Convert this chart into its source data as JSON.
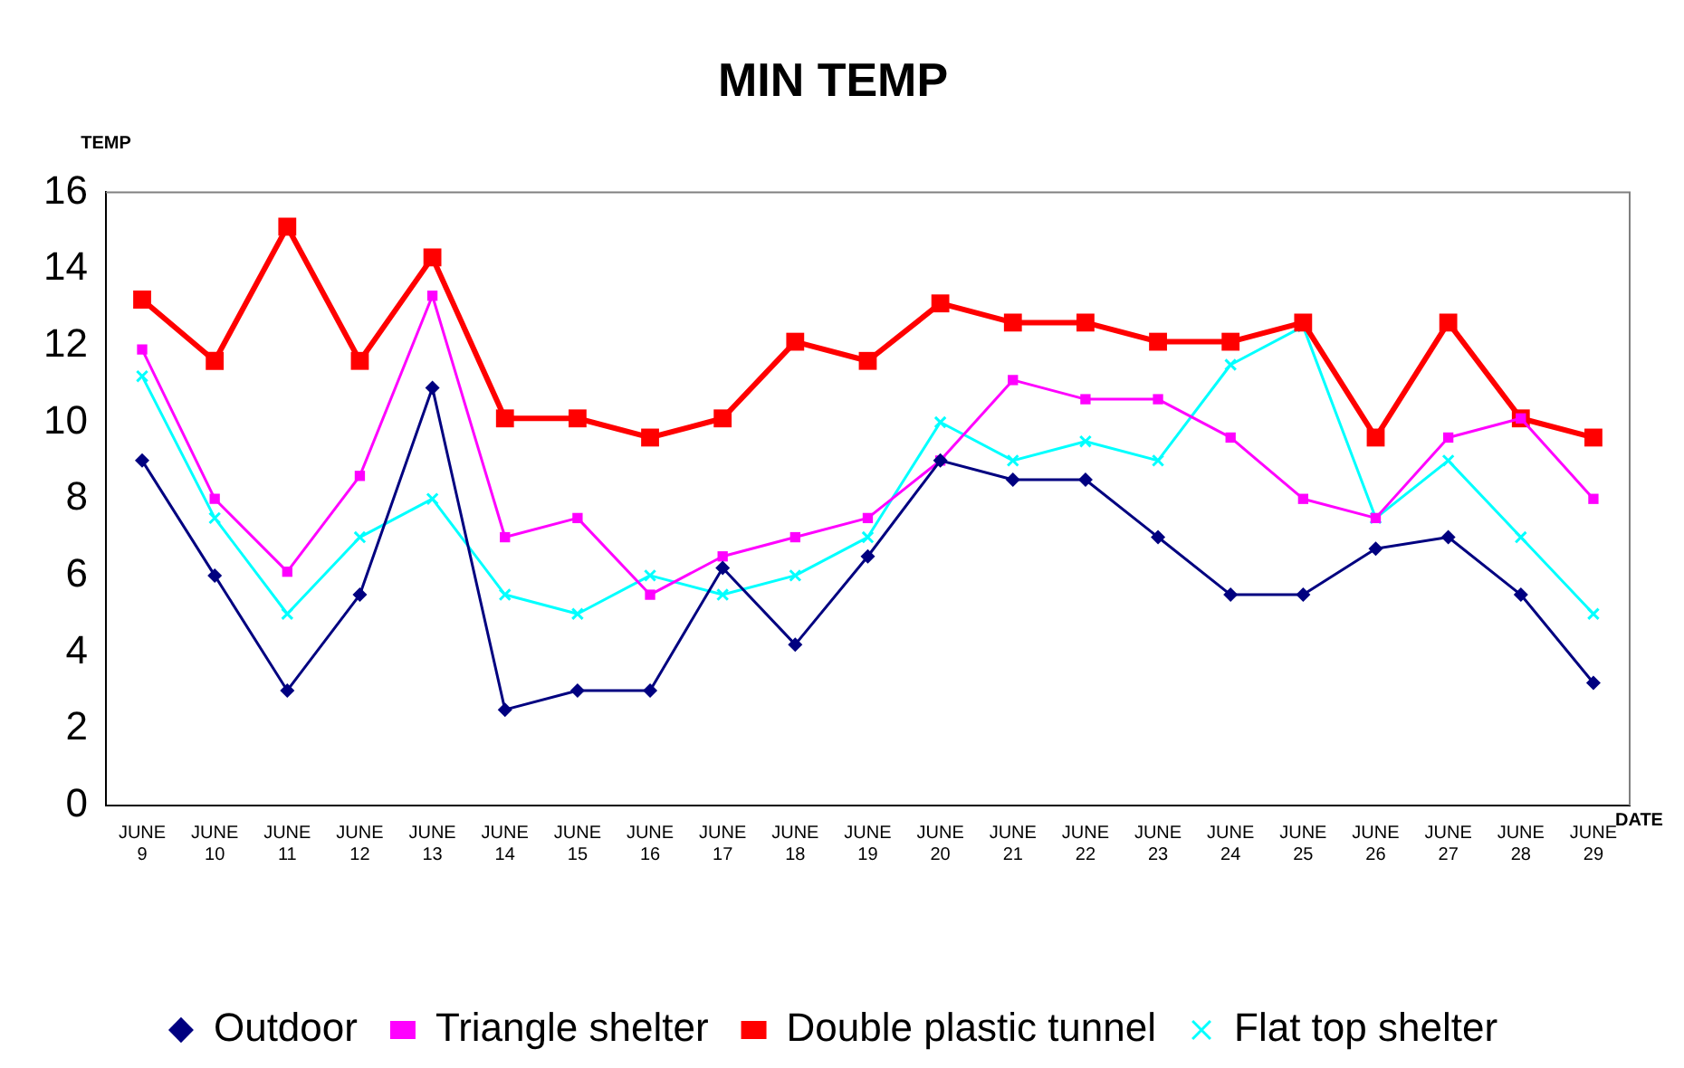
{
  "chart_data": {
    "type": "line",
    "title": "MIN TEMP",
    "xlabel": "DATE",
    "ylabel": "TEMP",
    "categories": [
      "JUNE 9",
      "JUNE 10",
      "JUNE 11",
      "JUNE 12",
      "JUNE 13",
      "JUNE 14",
      "JUNE 15",
      "JUNE 16",
      "JUNE 17",
      "JUNE 18",
      "JUNE 19",
      "JUNE 20",
      "JUNE 21",
      "JUNE 22",
      "JUNE 23",
      "JUNE 24",
      "JUNE 25",
      "JUNE 26",
      "JUNE 27",
      "JUNE 28",
      "JUNE 29"
    ],
    "series": [
      {
        "name": "Outdoor",
        "color": "#000080",
        "marker": "diamond",
        "values": [
          9,
          6,
          3,
          5.5,
          10.9,
          2.5,
          3,
          3,
          6.2,
          4.2,
          6.5,
          9,
          8.5,
          8.5,
          7,
          5.5,
          5.5,
          6.7,
          7,
          5.5,
          3.2
        ]
      },
      {
        "name": "Triangle shelter",
        "color": "#ff00ff",
        "marker": "square",
        "values": [
          11.9,
          8,
          6.1,
          8.6,
          13.3,
          7,
          7.5,
          5.5,
          6.5,
          7,
          7.5,
          9,
          11.1,
          10.6,
          10.6,
          9.6,
          8,
          7.5,
          9.6,
          10.1,
          8
        ]
      },
      {
        "name": "Double plastic tunnel",
        "color": "#ff0000",
        "marker": "square",
        "values": [
          13.2,
          11.6,
          15.1,
          11.6,
          14.3,
          10.1,
          10.1,
          9.6,
          10.1,
          12.1,
          11.6,
          13.1,
          12.6,
          12.6,
          12.1,
          12.1,
          12.6,
          9.6,
          12.6,
          10.1,
          9.6
        ]
      },
      {
        "name": "Flat top shelter",
        "color": "#00ffff",
        "marker": "cross",
        "values": [
          11.2,
          7.5,
          5,
          7,
          8,
          5.5,
          5,
          6,
          5.5,
          6,
          7,
          10,
          9,
          9.5,
          9,
          11.5,
          12.5,
          7.5,
          9,
          7,
          5
        ]
      }
    ],
    "ylim": [
      0,
      16
    ],
    "yticks": [
      0,
      2,
      4,
      6,
      8,
      10,
      12,
      14,
      16
    ],
    "grid": false,
    "legend": "bottom",
    "line_style": "solid"
  }
}
